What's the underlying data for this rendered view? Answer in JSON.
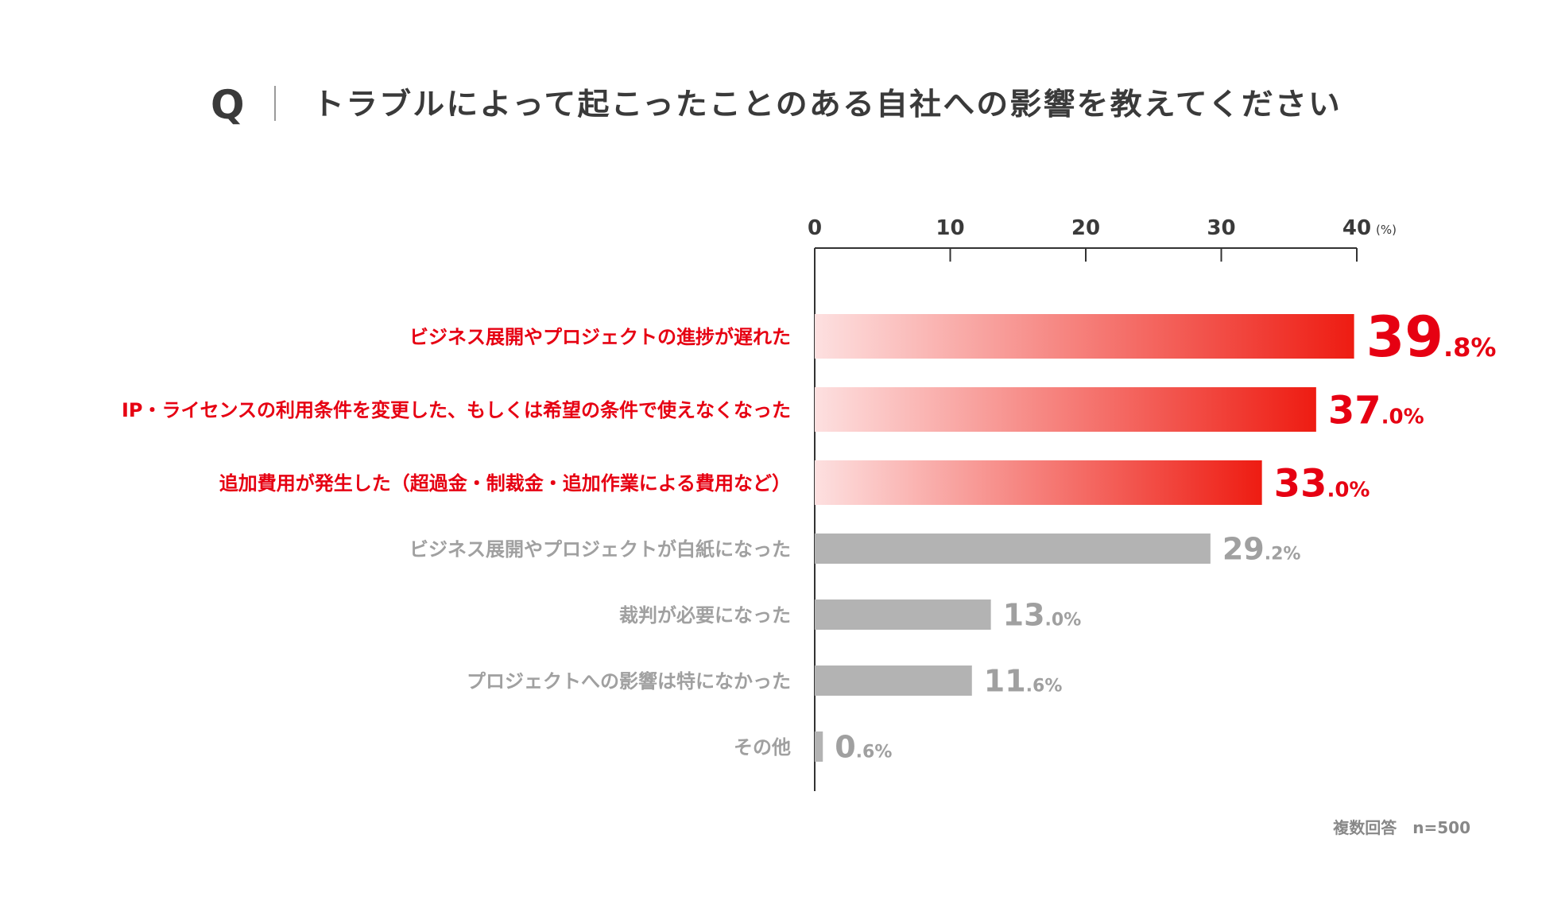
{
  "header": {
    "q_mark": "Q",
    "title": "トラブルによって起こったことのある自社への影響を教えてください"
  },
  "note": "複数回答　n=500",
  "colors": {
    "highlight": "#e60012",
    "highlight_gradient_start": "#fde0e0",
    "highlight_gradient_end": "#ee1c12",
    "gray_bar": "#b3b3b3",
    "gray_text": "#a0a0a0",
    "axis": "#333333"
  },
  "chart_data": {
    "type": "bar",
    "orientation": "horizontal",
    "title": "トラブルによって起こったことのある自社への影響を教えてください",
    "xlim": [
      0,
      40
    ],
    "ticks": [
      0,
      10,
      20,
      30,
      40
    ],
    "unit": "(%)",
    "grid": false,
    "categories": [
      "ビジネス展開やプロジェクトの進捗が遅れた",
      "IP・ライセンスの利用条件を変更した、もしくは希望の条件で使えなくなった",
      "追加費用が発生した（超過金・制裁金・追加作業による費用など）",
      "ビジネス展開やプロジェクトが白紙になった",
      "裁判が必要になった",
      "プロジェクトへの影響は特になかった",
      "その他"
    ],
    "values": [
      39.8,
      37.0,
      33.0,
      29.2,
      13.0,
      11.6,
      0.6
    ],
    "highlighted": [
      true,
      true,
      true,
      false,
      false,
      false,
      false
    ],
    "value_labels": [
      {
        "int": "39",
        "dec": ".8%"
      },
      {
        "int": "37",
        "dec": ".0%"
      },
      {
        "int": "33",
        "dec": ".0%"
      },
      {
        "int": "29",
        "dec": ".2%"
      },
      {
        "int": "13",
        "dec": ".0%"
      },
      {
        "int": "11",
        "dec": ".6%"
      },
      {
        "int": "0",
        "dec": ".6%"
      }
    ]
  }
}
